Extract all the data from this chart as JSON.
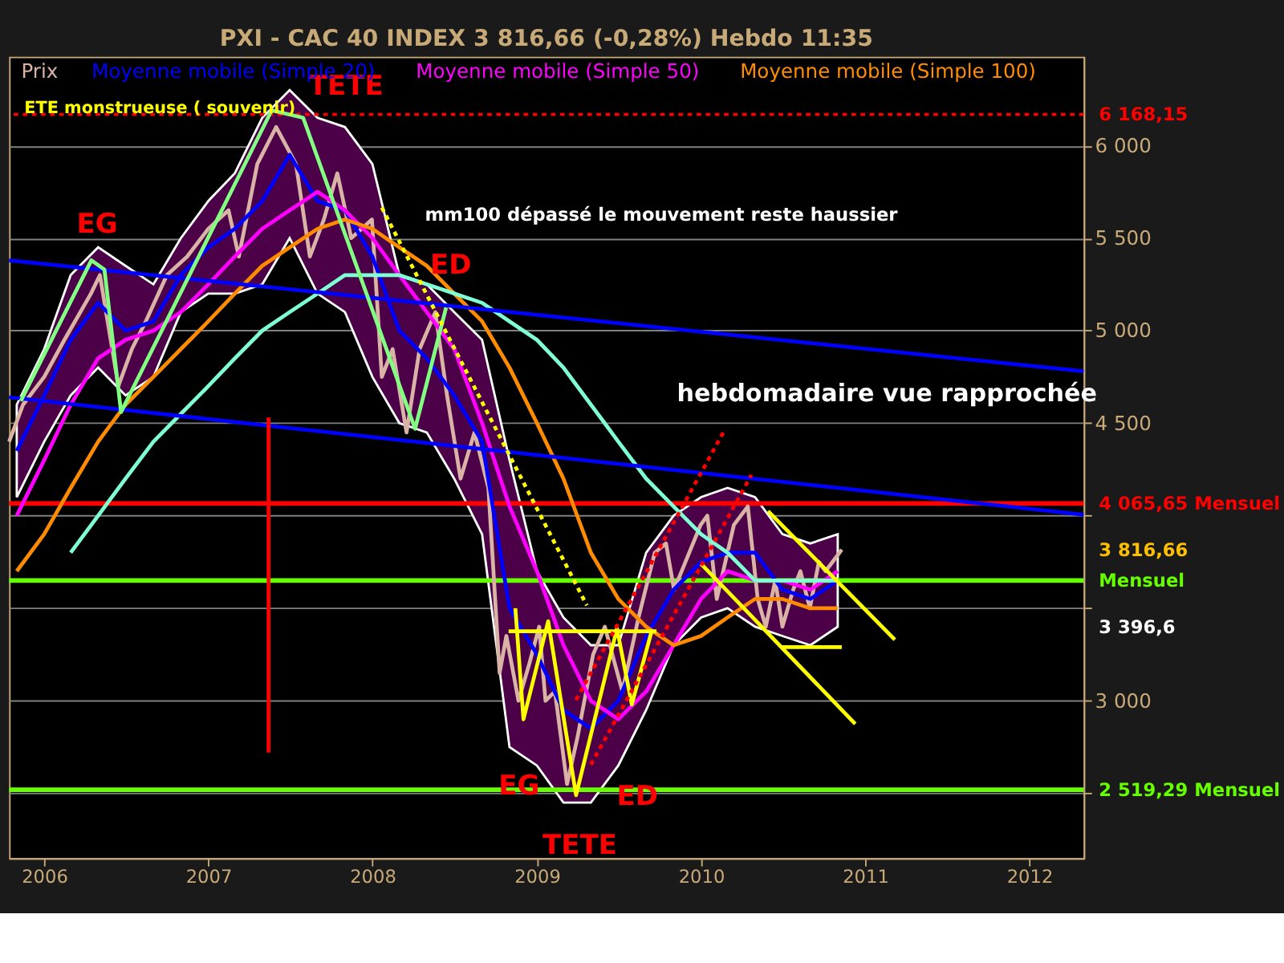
{
  "chart_data": {
    "type": "line",
    "title": "PXI - CAC 40 INDEX    3 816,66 (-0,28%)    Hebdo  11:35",
    "xlim": [
      "2005-10-15",
      "2012-05-01"
    ],
    "ylim": [
      2150,
      6480
    ],
    "xticks": [
      "2006",
      "2007",
      "2008",
      "2009",
      "2010",
      "2011",
      "2012"
    ],
    "yticks": [
      {
        "value": 2500,
        "label": null
      },
      {
        "value": 3000,
        "label": "3 000"
      },
      {
        "value": 3500,
        "label": null
      },
      {
        "value": 4000,
        "label": null
      },
      {
        "value": 4500,
        "label": "4 500"
      },
      {
        "value": 5000,
        "label": "5 000"
      },
      {
        "value": 5500,
        "label": "5 500"
      },
      {
        "value": 6000,
        "label": "6 000"
      }
    ],
    "grid": "y",
    "legend": "top",
    "series": [
      {
        "name": "Prix",
        "color": "#d9b3a6",
        "x": [
          "2005-10-15",
          "2005-11-15",
          "2006-01-01",
          "2006-02-15",
          "2006-04-15",
          "2006-05-05",
          "2006-06-15",
          "2006-07-15",
          "2006-08-15",
          "2006-10-01",
          "2006-11-15",
          "2007-01-01",
          "2007-02-15",
          "2007-03-10",
          "2007-04-20",
          "2007-06-01",
          "2007-07-15",
          "2007-08-15",
          "2007-09-15",
          "2007-10-15",
          "2007-11-15",
          "2007-12-31",
          "2008-01-22",
          "2008-02-15",
          "2008-03-17",
          "2008-04-15",
          "2008-05-20",
          "2008-06-15",
          "2008-07-15",
          "2008-08-15",
          "2008-09-15",
          "2008-10-10",
          "2008-10-25",
          "2008-11-21",
          "2008-12-15",
          "2009-01-06",
          "2009-01-20",
          "2009-02-10",
          "2009-03-09",
          "2009-04-01",
          "2009-05-06",
          "2009-06-01",
          "2009-07-10",
          "2009-08-15",
          "2009-09-20",
          "2009-10-15",
          "2009-11-02",
          "2009-12-31",
          "2010-01-15",
          "2010-02-05",
          "2010-03-15",
          "2010-04-15",
          "2010-05-07",
          "2010-05-25",
          "2010-06-15",
          "2010-07-01",
          "2010-07-25",
          "2010-08-10",
          "2010-08-31",
          "2010-09-20",
          "2010-10-05",
          "2010-11-10"
        ],
        "values": [
          4400,
          4600,
          4750,
          4950,
          5200,
          5300,
          4700,
          4900,
          5050,
          5300,
          5400,
          5550,
          5650,
          5400,
          5900,
          6100,
          5900,
          5400,
          5600,
          5850,
          5500,
          5600,
          4750,
          4900,
          4450,
          4900,
          5100,
          4650,
          4200,
          4450,
          4150,
          3150,
          3350,
          3000,
          3200,
          3400,
          3000,
          3050,
          2550,
          2800,
          3250,
          3400,
          3050,
          3450,
          3800,
          3850,
          3600,
          3950,
          4000,
          3550,
          3950,
          4050,
          3550,
          3400,
          3650,
          3400,
          3600,
          3700,
          3500,
          3750,
          3700,
          3816.66
        ]
      },
      {
        "name": "Moyenne mobile (Simple 20)",
        "color": "#0000ff",
        "x": [
          "2005-11-01",
          "2006-01-01",
          "2006-03-01",
          "2006-05-01",
          "2006-07-01",
          "2006-09-01",
          "2006-11-01",
          "2007-01-01",
          "2007-03-01",
          "2007-05-01",
          "2007-07-01",
          "2007-09-01",
          "2007-11-01",
          "2008-01-01",
          "2008-03-01",
          "2008-05-01",
          "2008-07-01",
          "2008-09-01",
          "2008-11-01",
          "2009-01-01",
          "2009-03-01",
          "2009-05-01",
          "2009-07-01",
          "2009-09-01",
          "2009-11-01",
          "2010-01-01",
          "2010-03-01",
          "2010-05-01",
          "2010-07-01",
          "2010-09-01",
          "2010-11-01"
        ],
        "values": [
          4350,
          4650,
          4950,
          5150,
          5000,
          5050,
          5300,
          5450,
          5550,
          5700,
          5950,
          5700,
          5650,
          5400,
          5000,
          4850,
          4650,
          4400,
          3500,
          3250,
          2950,
          2850,
          3000,
          3350,
          3600,
          3750,
          3800,
          3800,
          3600,
          3550,
          3650
        ],
        "upper": [
          4600,
          4900,
          5300,
          5450,
          5350,
          5250,
          5500,
          5700,
          5850,
          6150,
          6300,
          6150,
          6100,
          5900,
          5300,
          5250,
          5100,
          4950,
          4300,
          3700,
          3450,
          3300,
          3300,
          3800,
          4000,
          4100,
          4150,
          4100,
          3900,
          3850,
          3900
        ],
        "lower": [
          4100,
          4400,
          4650,
          4800,
          4650,
          4750,
          5100,
          5200,
          5200,
          5250,
          5500,
          5200,
          5100,
          4750,
          4500,
          4450,
          4200,
          3900,
          2750,
          2650,
          2450,
          2450,
          2650,
          2950,
          3300,
          3450,
          3500,
          3400,
          3350,
          3300,
          3400
        ]
      },
      {
        "name": "Moyenne mobile (Simple 50)",
        "color": "#ff00ff",
        "x": [
          "2005-11-01",
          "2006-01-01",
          "2006-03-01",
          "2006-05-01",
          "2006-07-01",
          "2006-09-01",
          "2006-11-01",
          "2007-01-01",
          "2007-03-01",
          "2007-05-01",
          "2007-07-01",
          "2007-09-01",
          "2007-11-01",
          "2008-01-01",
          "2008-03-01",
          "2008-05-01",
          "2008-07-01",
          "2008-09-01",
          "2008-11-01",
          "2009-01-01",
          "2009-03-01",
          "2009-05-01",
          "2009-07-01",
          "2009-09-01",
          "2009-11-01",
          "2010-01-01",
          "2010-03-01",
          "2010-05-01",
          "2010-07-01",
          "2010-09-01",
          "2010-11-01"
        ],
        "values": [
          4000,
          4300,
          4600,
          4850,
          4950,
          5000,
          5100,
          5250,
          5400,
          5550,
          5650,
          5750,
          5650,
          5500,
          5300,
          5100,
          4900,
          4500,
          4050,
          3700,
          3300,
          3000,
          2900,
          3050,
          3300,
          3550,
          3700,
          3650,
          3650,
          3600,
          3700
        ]
      },
      {
        "name": "Moyenne mobile (Simple 100)",
        "color": "#ff8c00",
        "x": [
          "2005-11-01",
          "2006-01-01",
          "2006-03-01",
          "2006-05-01",
          "2006-07-01",
          "2006-09-01",
          "2006-11-01",
          "2007-01-01",
          "2007-03-01",
          "2007-05-01",
          "2007-07-01",
          "2007-09-01",
          "2007-11-01",
          "2008-01-01",
          "2008-03-01",
          "2008-05-01",
          "2008-07-01",
          "2008-09-01",
          "2008-11-01",
          "2009-01-01",
          "2009-03-01",
          "2009-05-01",
          "2009-07-01",
          "2009-09-01",
          "2009-11-01",
          "2010-01-01",
          "2010-03-01",
          "2010-05-01",
          "2010-07-01",
          "2010-09-01",
          "2010-11-01"
        ],
        "values": [
          3700,
          3900,
          4150,
          4400,
          4600,
          4750,
          4900,
          5050,
          5200,
          5350,
          5450,
          5550,
          5600,
          5550,
          5450,
          5350,
          5200,
          5050,
          4800,
          4500,
          4200,
          3800,
          3550,
          3400,
          3300,
          3350,
          3450,
          3550,
          3550,
          3500,
          3500
        ]
      },
      {
        "color": "#7fffd4",
        "x": [
          "2006-03-01",
          "2006-05-01",
          "2006-07-01",
          "2006-09-01",
          "2006-11-01",
          "2007-01-01",
          "2007-03-01",
          "2007-05-01",
          "2007-07-01",
          "2007-09-01",
          "2007-11-01",
          "2008-01-01",
          "2008-03-01",
          "2008-05-01",
          "2008-07-01",
          "2008-09-01",
          "2008-11-01",
          "2009-01-01",
          "2009-03-01",
          "2009-05-01",
          "2009-07-01",
          "2009-09-01",
          "2009-11-01",
          "2010-01-01",
          "2010-03-01",
          "2010-05-01",
          "2010-07-01",
          "2010-09-01",
          "2010-11-01"
        ],
        "values": [
          3800,
          4000,
          4200,
          4400,
          4550,
          4700,
          4850,
          5000,
          5100,
          5200,
          5300,
          5300,
          5300,
          5250,
          5200,
          5150,
          5050,
          4950,
          4800,
          4600,
          4400,
          4200,
          4050,
          3900,
          3800,
          3650,
          3650,
          3650,
          3650
        ]
      },
      {
        "color": "#0000ff",
        "x": [
          "2005-10-15",
          "2012-05-01"
        ],
        "values": [
          5380,
          4780
        ]
      },
      {
        "color": "#0000ff",
        "x": [
          "2005-10-15",
          "2012-05-01"
        ],
        "values": [
          4640,
          4005
        ]
      },
      {
        "color": "#80ff80",
        "x": [
          "2005-11-10",
          "2006-04-16",
          "2006-05-15",
          "2006-06-21",
          "2007-05-22",
          "2007-07-31",
          "2008-04-05",
          "2008-06-13"
        ],
        "values": [
          4620,
          5380,
          5330,
          4560,
          6190,
          6150,
          4470,
          5125
        ]
      },
      {
        "color": "#ffff00",
        "x": [
          "2008-11-14",
          "2008-12-02",
          "2009-01-26",
          "2009-03-29",
          "2009-06-28",
          "2009-07-31",
          "2009-09-13"
        ],
        "values": [
          3500,
          2900,
          3430,
          2490,
          3390,
          2980,
          3375
        ]
      },
      {
        "color": "#ffff00",
        "x": [
          "2008-10-30",
          "2009-09-24"
        ],
        "values": [
          3375,
          3375
        ]
      },
      {
        "color": "#ffff00",
        "x": [
          "2010-01-01",
          "2010-12-10"
        ],
        "values": [
          3740,
          2875
        ]
      },
      {
        "color": "#ffff00",
        "x": [
          "2010-05-30",
          "2011-03-08"
        ],
        "values": [
          4025,
          3330
        ]
      },
      {
        "color": "#ffff00",
        "x": [
          "2010-06-28",
          "2010-11-10"
        ],
        "values": [
          3290,
          3290
        ]
      },
      {
        "color": "#ffff00",
        "line_style": "dotted",
        "x": [
          "2008-01-22",
          "2009-04-22"
        ],
        "values": [
          5665,
          3515
        ]
      },
      {
        "color": "#ff0000",
        "line_style": "dotted",
        "x": [
          "2009-03-29",
          "2010-02-24"
        ],
        "values": [
          3005,
          4470
        ]
      },
      {
        "color": "#ff0000",
        "line_style": "dotted",
        "x": [
          "2009-05-01",
          "2010-04-23"
        ],
        "values": [
          2655,
          4220
        ]
      },
      {
        "color": "#ff0000",
        "x": [
          "2007-05-15",
          "2007-05-15"
        ],
        "values": [
          4530,
          2720
        ]
      }
    ],
    "ref_lines": [
      {
        "axis": "y",
        "value": 6168.15,
        "label": "6 168,15",
        "color": "#ff0000",
        "line_style": "dotted"
      },
      {
        "axis": "y",
        "value": 4065.65,
        "label": "4 065,65 Mensuel",
        "color": "#ff0000"
      },
      {
        "axis": "y",
        "value": 3650,
        "label": "Mensuel",
        "color": "#66ff00"
      },
      {
        "axis": "y",
        "value": 2519.29,
        "label": "2 519,29 Mensuel",
        "color": "#66ff00"
      }
    ],
    "annotations": [
      "ETE monstrueuse ( souvenir)",
      "mm100 dépassé  le mouvement reste haussier",
      "hebdomadaire vue rapprochée",
      "EG",
      "TETE",
      "ED",
      "EG",
      "TETE",
      "ED",
      "3 816,66",
      "3 396,6"
    ]
  }
}
